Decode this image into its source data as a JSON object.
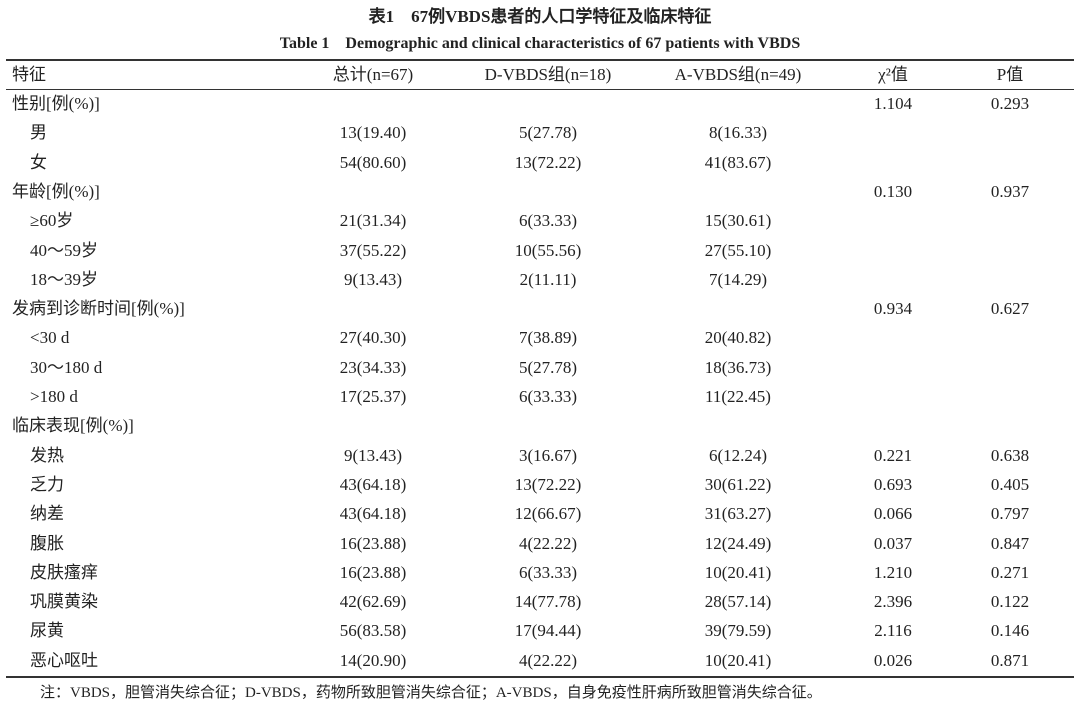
{
  "header": {
    "title": "表1　67例VBDS患者的人口学特征及临床特征",
    "subtitle": "Table 1　Demographic and clinical characteristics of 67 patients with VBDS"
  },
  "table": {
    "columns": [
      "特征",
      "总计(n=67)",
      "D-VBDS组(n=18)",
      "A-VBDS组(n=49)",
      "χ²值",
      "P值"
    ],
    "groups": [
      {
        "label": "性别[例(%)]",
        "chi": "1.104",
        "p": "0.293",
        "items": [
          {
            "label": "男",
            "values": [
              "13(19.40)",
              "5(27.78)",
              "8(16.33)"
            ]
          },
          {
            "label": "女",
            "values": [
              "54(80.60)",
              "13(72.22)",
              "41(83.67)"
            ]
          }
        ]
      },
      {
        "label": "年龄[例(%)]",
        "chi": "0.130",
        "p": "0.937",
        "items": [
          {
            "label": "≥60岁",
            "values": [
              "21(31.34)",
              "6(33.33)",
              "15(30.61)"
            ]
          },
          {
            "label": "40～59岁",
            "values": [
              "37(55.22)",
              "10(55.56)",
              "27(55.10)"
            ]
          },
          {
            "label": "18～39岁",
            "values": [
              "9(13.43)",
              "2(11.11)",
              "7(14.29)"
            ]
          }
        ]
      },
      {
        "label": "发病到诊断时间[例(%)]",
        "chi": "0.934",
        "p": "0.627",
        "items": [
          {
            "label": "<30 d",
            "values": [
              "27(40.30)",
              "7(38.89)",
              "20(40.82)"
            ]
          },
          {
            "label": "30～180 d",
            "values": [
              "23(34.33)",
              "5(27.78)",
              "18(36.73)"
            ]
          },
          {
            "label": ">180 d",
            "values": [
              "17(25.37)",
              "6(33.33)",
              "11(22.45)"
            ]
          }
        ]
      },
      {
        "label": "临床表现[例(%)]",
        "items": [
          {
            "label": "发热",
            "values": [
              "9(13.43)",
              "3(16.67)",
              "6(12.24)"
            ],
            "chi": "0.221",
            "p": "0.638"
          },
          {
            "label": "乏力",
            "values": [
              "43(64.18)",
              "13(72.22)",
              "30(61.22)"
            ],
            "chi": "0.693",
            "p": "0.405"
          },
          {
            "label": "纳差",
            "values": [
              "43(64.18)",
              "12(66.67)",
              "31(63.27)"
            ],
            "chi": "0.066",
            "p": "0.797"
          },
          {
            "label": "腹胀",
            "values": [
              "16(23.88)",
              "4(22.22)",
              "12(24.49)"
            ],
            "chi": "0.037",
            "p": "0.847"
          },
          {
            "label": "皮肤瘙痒",
            "values": [
              "16(23.88)",
              "6(33.33)",
              "10(20.41)"
            ],
            "chi": "1.210",
            "p": "0.271"
          },
          {
            "label": "巩膜黄染",
            "values": [
              "42(62.69)",
              "14(77.78)",
              "28(57.14)"
            ],
            "chi": "2.396",
            "p": "0.122"
          },
          {
            "label": "尿黄",
            "values": [
              "56(83.58)",
              "17(94.44)",
              "39(79.59)"
            ],
            "chi": "2.116",
            "p": "0.146"
          },
          {
            "label": "恶心呕吐",
            "values": [
              "14(20.90)",
              "4(22.22)",
              "10(20.41)"
            ],
            "chi": "0.026",
            "p": "0.871"
          }
        ]
      }
    ]
  },
  "note": "注：VBDS，胆管消失综合征；D-VBDS，药物所致胆管消失综合征；A-VBDS，自身免疫性肝病所致胆管消失综合征。"
}
